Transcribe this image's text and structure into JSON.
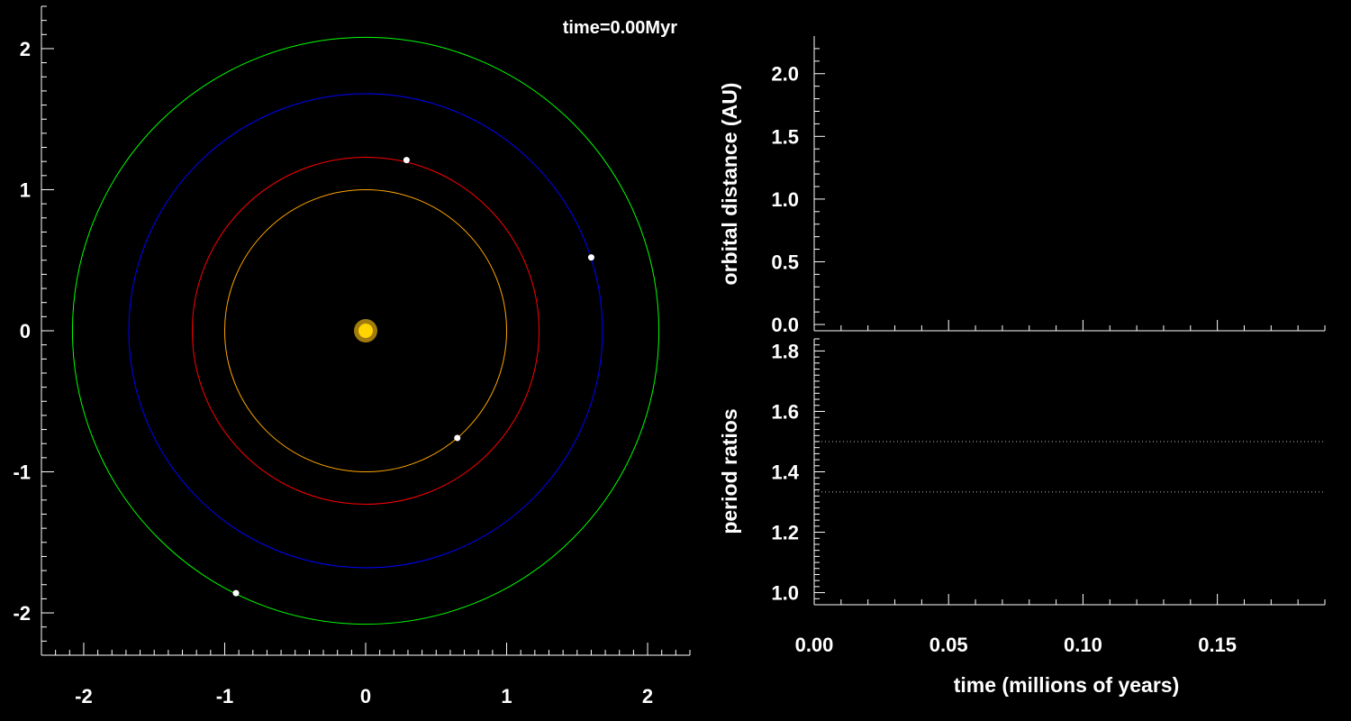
{
  "chart_data": [
    {
      "type": "scatter",
      "title": "time=0.00Myr",
      "xlim": [
        -2.3,
        2.3
      ],
      "ylim": [
        -2.3,
        2.3
      ],
      "x_ticks": [
        "-2",
        "-1",
        "0",
        "1",
        "2"
      ],
      "y_ticks": [
        "2",
        "1",
        "0",
        "-1",
        "-2"
      ],
      "star": {
        "x": 0,
        "y": 0,
        "color": "#ffd400"
      },
      "orbits": [
        {
          "radius": 1.0,
          "color": "#ffa500"
        },
        {
          "radius": 1.23,
          "color": "#ff0000"
        },
        {
          "radius": 1.68,
          "color": "#0000ff"
        },
        {
          "radius": 2.08,
          "color": "#00ff00"
        }
      ],
      "planets": [
        {
          "x": 0.65,
          "y": -0.76
        },
        {
          "x": 0.29,
          "y": 1.21
        },
        {
          "x": 1.6,
          "y": 0.52
        },
        {
          "x": -0.92,
          "y": -1.86
        }
      ]
    },
    {
      "type": "line",
      "ylabel": "orbital distance (AU)",
      "xlim": [
        0.0,
        0.19
      ],
      "ylim": [
        -0.05,
        2.3
      ],
      "y_ticks": [
        "0.0",
        "0.5",
        "1.0",
        "1.5",
        "2.0"
      ],
      "series": []
    },
    {
      "type": "line",
      "ylabel": "period ratios",
      "xlabel": "time (millions of years)",
      "xlim": [
        0.0,
        0.19
      ],
      "ylim": [
        0.96,
        1.84
      ],
      "x_ticks": [
        "0.00",
        "0.05",
        "0.10",
        "0.15"
      ],
      "y_ticks": [
        "1.0",
        "1.2",
        "1.4",
        "1.6",
        "1.8"
      ],
      "reference_lines": [
        1.5,
        1.3333
      ]
    }
  ]
}
